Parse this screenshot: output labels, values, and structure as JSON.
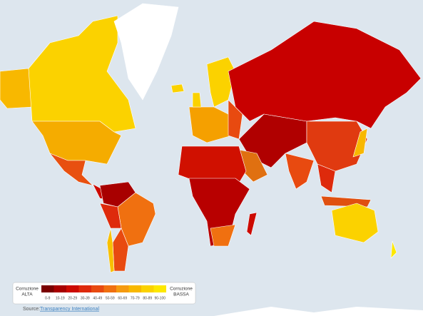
{
  "legend": {
    "left": {
      "line1": "Corruzione",
      "line2": "ALTA"
    },
    "right": {
      "line1": "Corruzione",
      "line2": "BASSA"
    },
    "bins": [
      {
        "label": "0-9",
        "color": "#7a0000"
      },
      {
        "label": "10-19",
        "color": "#a80000"
      },
      {
        "label": "20-29",
        "color": "#cc0a00"
      },
      {
        "label": "30-39",
        "color": "#de2a0c"
      },
      {
        "label": "40-49",
        "color": "#e84a10"
      },
      {
        "label": "50-59",
        "color": "#f07010"
      },
      {
        "label": "60-69",
        "color": "#f59a10"
      },
      {
        "label": "70-79",
        "color": "#f8b800"
      },
      {
        "label": "80-89",
        "color": "#fbd200"
      },
      {
        "label": "90-100",
        "color": "#fde800"
      }
    ]
  },
  "source": {
    "label": "Source:",
    "link": "Transparency International"
  }
}
